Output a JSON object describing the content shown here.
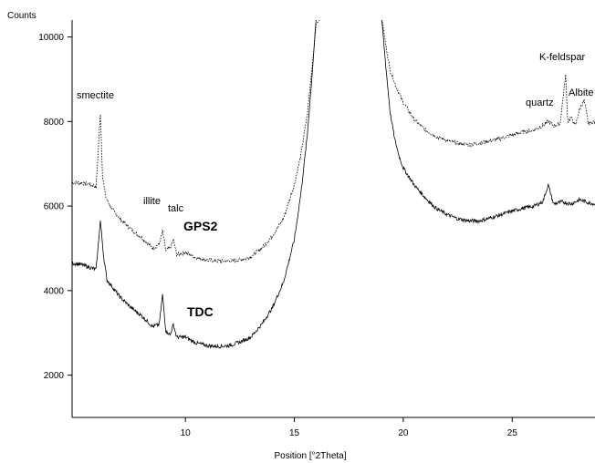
{
  "chart_data": {
    "type": "line",
    "title": "",
    "xlabel": "Position [°2Theta]",
    "ylabel": "Counts",
    "xlim": [
      4.8,
      28.8
    ],
    "ylim": [
      1000,
      10400
    ],
    "xticks": [
      10,
      15,
      20,
      25
    ],
    "yticks": [
      2000,
      4000,
      6000,
      8000,
      10000
    ],
    "grid": false,
    "series": [
      {
        "name": "GPS2",
        "style": "dotted",
        "color": "#000000",
        "x": [
          4.8,
          5.2,
          5.6,
          5.9,
          6.1,
          6.2,
          6.35,
          6.6,
          7.0,
          7.5,
          8.0,
          8.5,
          8.8,
          8.95,
          9.1,
          9.3,
          9.45,
          9.6,
          10.0,
          10.5,
          11.0,
          11.5,
          12.0,
          12.5,
          13.0,
          13.5,
          14.0,
          14.5,
          15.0,
          15.3,
          15.6,
          15.8,
          16.0,
          16.3,
          16.6,
          18.8,
          19.0,
          19.2,
          19.4,
          19.7,
          20.0,
          20.5,
          21.0,
          21.5,
          22.0,
          22.5,
          23.0,
          23.5,
          24.0,
          24.5,
          25.0,
          25.5,
          26.0,
          26.4,
          26.65,
          26.9,
          27.2,
          27.45,
          27.55,
          27.7,
          27.9,
          28.1,
          28.3,
          28.5,
          28.8
        ],
        "y": [
          6550,
          6550,
          6520,
          6450,
          8200,
          6700,
          6200,
          5950,
          5700,
          5450,
          5250,
          5000,
          5100,
          5400,
          4950,
          5000,
          5200,
          4850,
          4900,
          4780,
          4720,
          4700,
          4700,
          4720,
          4800,
          5000,
          5300,
          5700,
          6500,
          7200,
          8200,
          9200,
          10300,
          10500,
          10500,
          10500,
          10500,
          9800,
          9200,
          8800,
          8450,
          8050,
          7800,
          7650,
          7550,
          7480,
          7450,
          7480,
          7550,
          7600,
          7680,
          7750,
          7800,
          7900,
          8000,
          7900,
          7950,
          9100,
          8000,
          8100,
          7900,
          8300,
          8500,
          7950,
          8000
        ]
      },
      {
        "name": "TDC",
        "style": "solid",
        "color": "#000000",
        "x": [
          4.8,
          5.2,
          5.6,
          5.9,
          6.1,
          6.25,
          6.4,
          6.7,
          7.0,
          7.5,
          8.0,
          8.5,
          8.8,
          8.95,
          9.1,
          9.3,
          9.45,
          9.6,
          10.0,
          10.5,
          11.0,
          11.5,
          12.0,
          12.5,
          13.0,
          13.5,
          14.0,
          14.5,
          15.0,
          15.3,
          15.6,
          15.8,
          16.0,
          16.3,
          16.6,
          18.8,
          19.0,
          19.2,
          19.4,
          19.6,
          19.8,
          20.0,
          20.5,
          21.0,
          21.5,
          22.0,
          22.5,
          23.0,
          23.5,
          24.0,
          24.5,
          25.0,
          25.5,
          26.0,
          26.4,
          26.65,
          26.9,
          27.3,
          27.7,
          28.1,
          28.5,
          28.8
        ],
        "y": [
          4650,
          4620,
          4550,
          4500,
          5650,
          4800,
          4250,
          4050,
          3850,
          3600,
          3400,
          3150,
          3200,
          3900,
          3050,
          2950,
          3200,
          2900,
          2900,
          2760,
          2700,
          2680,
          2700,
          2780,
          2900,
          3200,
          3600,
          4200,
          5200,
          6300,
          7700,
          9000,
          10400,
          10500,
          10500,
          10500,
          10500,
          9300,
          8200,
          7600,
          7200,
          6900,
          6500,
          6200,
          5950,
          5800,
          5700,
          5650,
          5650,
          5720,
          5800,
          5880,
          5950,
          6000,
          6100,
          6500,
          6050,
          6100,
          6050,
          6150,
          6080,
          6050
        ]
      }
    ],
    "annotations": [
      {
        "text": "smectite",
        "series": "GPS2"
      },
      {
        "text": "illite",
        "series": "GPS2"
      },
      {
        "text": "talc",
        "series": "GPS2"
      },
      {
        "text": "quartz",
        "series": "GPS2"
      },
      {
        "text": "K-feldspar",
        "series": "GPS2"
      },
      {
        "text": "Albite",
        "series": "GPS2"
      },
      {
        "text": "GPS2",
        "bold": true
      },
      {
        "text": "TDC",
        "bold": true
      }
    ]
  }
}
